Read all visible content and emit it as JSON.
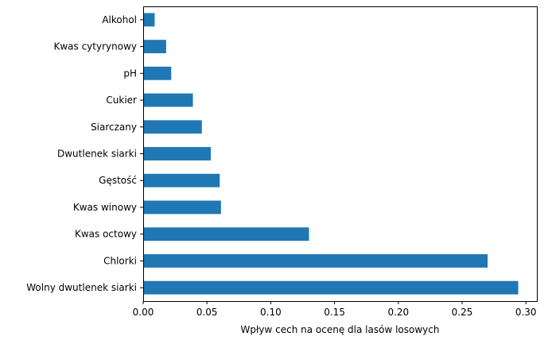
{
  "chart_data": {
    "type": "bar",
    "orientation": "horizontal",
    "categories": [
      "Alkohol",
      "Kwas cytyrynowy",
      "pH",
      "Cukier",
      "Siarczany",
      "Dwutlenek siarki",
      "Gęstość",
      "Kwas winowy",
      "Kwas octowy",
      "Chlorki",
      "Wolny dwutlenek siarki"
    ],
    "values": [
      0.009,
      0.018,
      0.022,
      0.039,
      0.046,
      0.053,
      0.06,
      0.061,
      0.13,
      0.27,
      0.294
    ],
    "title": "",
    "xlabel": "Wpływ cech na ocenę dla lasów losowych",
    "ylabel": "",
    "xlim": [
      0,
      0.3086
    ],
    "xticks": [
      "0.00",
      "0.05",
      "0.10",
      "0.15",
      "0.20",
      "0.25",
      "0.30"
    ],
    "grid": false,
    "bar_color": "#1f77b4"
  }
}
